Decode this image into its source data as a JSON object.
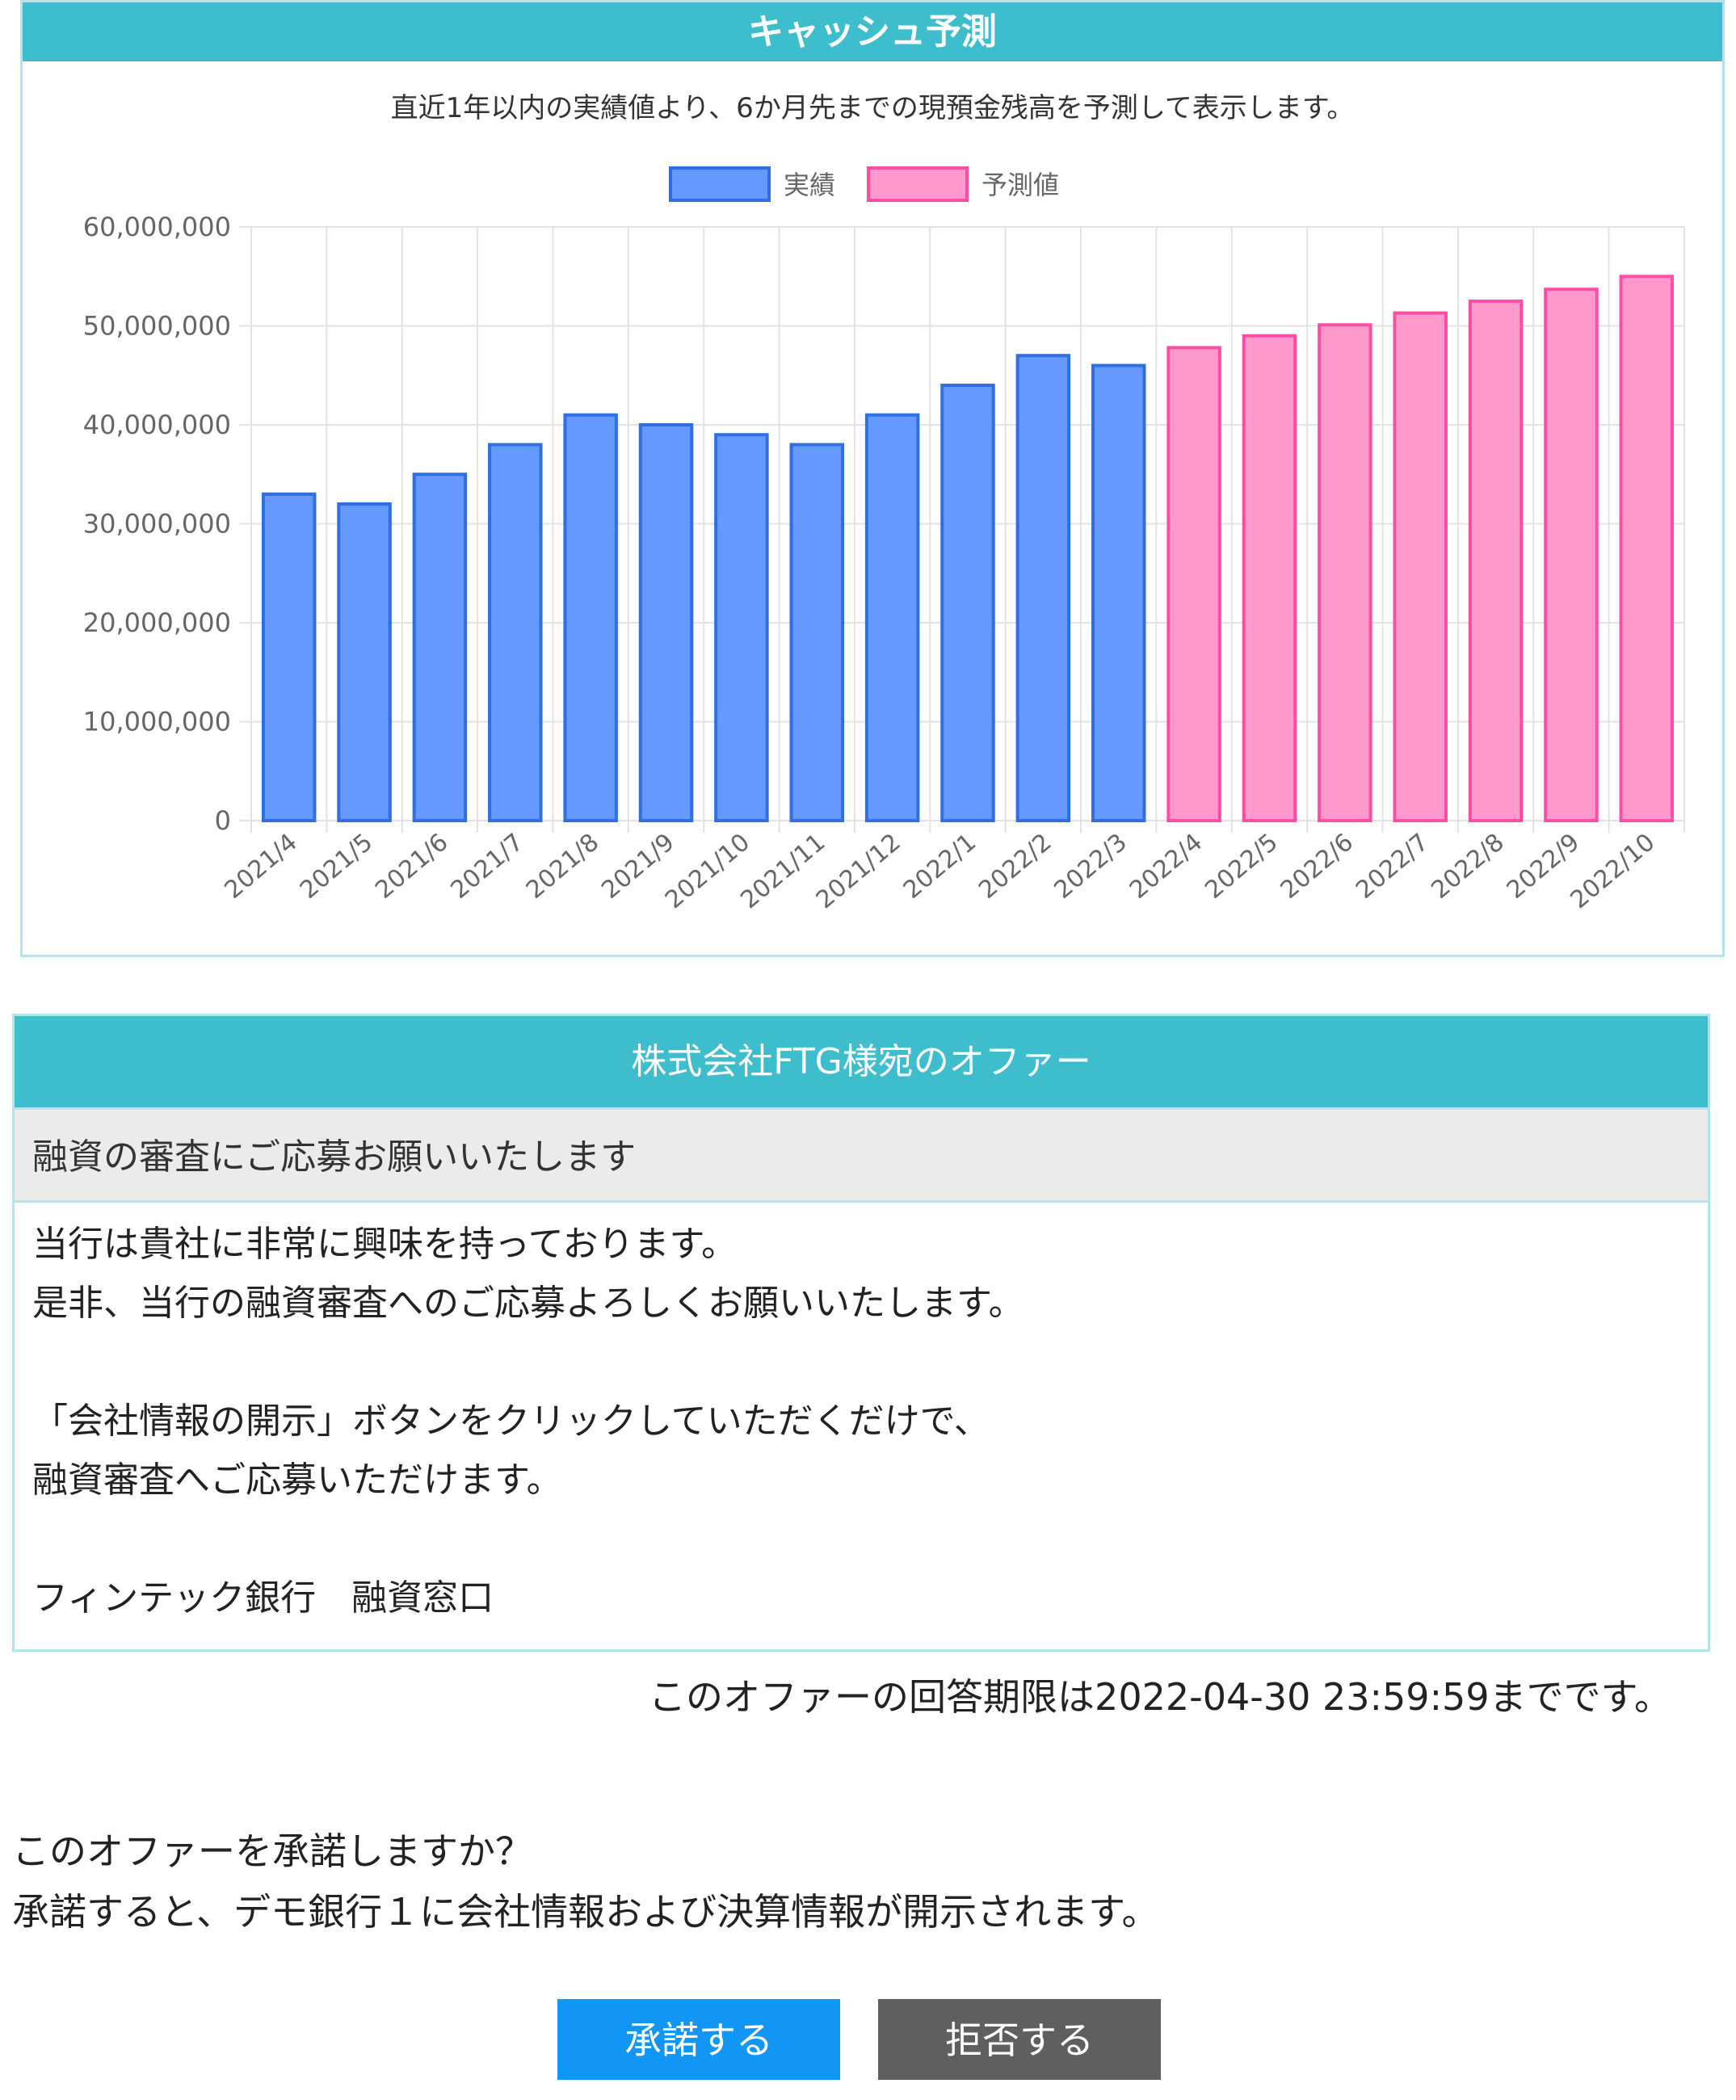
{
  "chart_panel": {
    "title": "キャッシュ予測",
    "description": "直近1年以内の実績値より、6か月先までの現預金残高を予測して表示します。"
  },
  "chart_data": {
    "type": "bar",
    "categories": [
      "2021/4",
      "2021/5",
      "2021/6",
      "2021/7",
      "2021/8",
      "2021/9",
      "2021/10",
      "2021/11",
      "2021/12",
      "2022/1",
      "2022/2",
      "2022/3",
      "2022/4",
      "2022/5",
      "2022/6",
      "2022/7",
      "2022/8",
      "2022/9",
      "2022/10"
    ],
    "series": [
      {
        "name": "実績",
        "color": "#6699ff",
        "border": "#2f6fe0",
        "values": [
          33000000,
          32000000,
          35000000,
          38000000,
          41000000,
          40000000,
          39000000,
          38000000,
          41000000,
          44000000,
          47000000,
          46000000,
          null,
          null,
          null,
          null,
          null,
          null,
          null
        ]
      },
      {
        "name": "予測値",
        "color": "#ff99cc",
        "border": "#ff4da6",
        "values": [
          null,
          null,
          null,
          null,
          null,
          null,
          null,
          null,
          null,
          null,
          null,
          null,
          47800000,
          49000000,
          50100000,
          51300000,
          52500000,
          53700000,
          55000000
        ]
      }
    ],
    "ylim": [
      0,
      60000000
    ],
    "yticks": [
      "0",
      "10,000,000",
      "20,000,000",
      "30,000,000",
      "40,000,000",
      "50,000,000",
      "60,000,000"
    ],
    "grid": true,
    "legend_position": "top"
  },
  "offer": {
    "header": "株式会社FTG様宛のオファー",
    "subject": "融資の審査にご応募お願いいたします",
    "body": "当行は貴社に非常に興味を持っております。\n是非、当行の融資審査へのご応募よろしくお願いいたします。\n\n「会社情報の開示」ボタンをクリックしていただくだけで、\n融資審査へご応募いただけます。\n\nフィンテック銀行　融資窓口"
  },
  "deadline_text": "このオファーの回答期限は2022-04-30 23:59:59までです。",
  "question": {
    "line1": "このオファーを承諾しますか？",
    "line2": "承諾すると、デモ銀行１に会社情報および決算情報が開示されます。"
  },
  "buttons": {
    "accept": "承諾する",
    "reject": "拒否する"
  }
}
